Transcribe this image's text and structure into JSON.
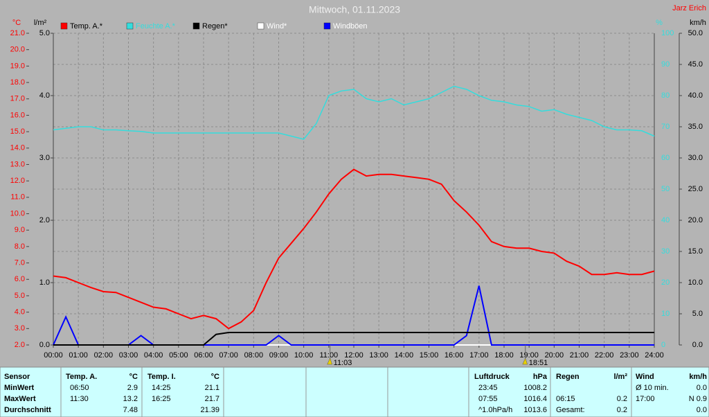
{
  "header": {
    "title": "Mittwoch, 01.11.2023",
    "author": "Jarz Erich"
  },
  "chart_data": {
    "type": "line",
    "x": [
      0,
      0.5,
      1,
      1.5,
      2,
      2.5,
      3,
      3.5,
      4,
      4.5,
      5,
      5.5,
      6,
      6.5,
      7,
      7.5,
      8,
      8.5,
      9,
      9.5,
      10,
      10.5,
      11,
      11.5,
      12,
      12.5,
      13,
      13.5,
      14,
      14.5,
      15,
      15.5,
      16,
      16.5,
      17,
      17.5,
      18,
      18.5,
      19,
      19.5,
      20,
      20.5,
      21,
      21.5,
      22,
      22.5,
      23,
      23.5,
      24
    ],
    "xlim": [
      0,
      24
    ],
    "xticks": [
      {
        "value": 0,
        "label": "00:00"
      },
      {
        "value": 1,
        "label": "01:00"
      },
      {
        "value": 2,
        "label": "02:00"
      },
      {
        "value": 3,
        "label": "03:00"
      },
      {
        "value": 4,
        "label": "04:00"
      },
      {
        "value": 5,
        "label": "05:00"
      },
      {
        "value": 6,
        "label": "06:00"
      },
      {
        "value": 7,
        "label": "07:00"
      },
      {
        "value": 8,
        "label": "08:00"
      },
      {
        "value": 9,
        "label": "09:00"
      },
      {
        "value": 10,
        "label": "10:00"
      },
      {
        "value": 11,
        "label": "11:00"
      },
      {
        "value": 12,
        "label": "12:00"
      },
      {
        "value": 13,
        "label": "13:00"
      },
      {
        "value": 14,
        "label": "14:00"
      },
      {
        "value": 15,
        "label": "15:00"
      },
      {
        "value": 16,
        "label": "16:00"
      },
      {
        "value": 17,
        "label": "17:00"
      },
      {
        "value": 18,
        "label": "18:00"
      },
      {
        "value": 19,
        "label": "19:00"
      },
      {
        "value": 20,
        "label": "20:00"
      },
      {
        "value": 21,
        "label": "21:00"
      },
      {
        "value": 22,
        "label": "22:00"
      },
      {
        "value": 23,
        "label": "23:00"
      },
      {
        "value": 24,
        "label": "24:00"
      }
    ],
    "ylabel": "°C",
    "ylim": [
      2,
      21
    ],
    "yticks": [
      {
        "value": 2,
        "label": "2.0"
      },
      {
        "value": 3,
        "label": "3.0"
      },
      {
        "value": 4,
        "label": "4.0"
      },
      {
        "value": 5,
        "label": "5.0"
      },
      {
        "value": 6,
        "label": "6.0"
      },
      {
        "value": 7,
        "label": "7.0"
      },
      {
        "value": 8,
        "label": "8.0"
      },
      {
        "value": 9,
        "label": "9.0"
      },
      {
        "value": 10,
        "label": "10.0"
      },
      {
        "value": 11,
        "label": "11.0"
      },
      {
        "value": 12,
        "label": "12.0"
      },
      {
        "value": 13,
        "label": "13.0"
      },
      {
        "value": 14,
        "label": "14.0"
      },
      {
        "value": 15,
        "label": "15.0"
      },
      {
        "value": 16,
        "label": "16.0"
      },
      {
        "value": 17,
        "label": "17.0"
      },
      {
        "value": 18,
        "label": "18.0"
      },
      {
        "value": 19,
        "label": "19.0"
      },
      {
        "value": 20,
        "label": "20.0"
      },
      {
        "value": 21,
        "label": "21.0"
      }
    ],
    "y2label": "l/m²",
    "y2lim": [
      0,
      5
    ],
    "y2ticks": [
      {
        "value": 0,
        "label": "0.0"
      },
      {
        "value": 1,
        "label": "1.0"
      },
      {
        "value": 2,
        "label": "2.0"
      },
      {
        "value": 3,
        "label": "3.0"
      },
      {
        "value": 4,
        "label": "4.0"
      },
      {
        "value": 5,
        "label": "5.0"
      }
    ],
    "y3label": "%",
    "y3lim": [
      0,
      100
    ],
    "y3ticks": [
      0,
      10,
      20,
      30,
      40,
      50,
      60,
      70,
      80,
      90,
      100
    ],
    "y4label": "km/h",
    "y4lim": [
      0,
      50
    ],
    "y4ticks": [
      {
        "value": 0,
        "label": "0.0"
      },
      {
        "value": 5,
        "label": "5.0"
      },
      {
        "value": 10,
        "label": "10.0"
      },
      {
        "value": 15,
        "label": "15.0"
      },
      {
        "value": 20,
        "label": "20.0"
      },
      {
        "value": 25,
        "label": "25.0"
      },
      {
        "value": 30,
        "label": "30.0"
      },
      {
        "value": 35,
        "label": "35.0"
      },
      {
        "value": 40,
        "label": "40.0"
      },
      {
        "value": 45,
        "label": "45.0"
      },
      {
        "value": 50,
        "label": "50.0"
      }
    ],
    "grid": true,
    "series": [
      {
        "name": "Temp. A.*",
        "color": "#ff0000",
        "axis": "y",
        "values": [
          6.2,
          6.1,
          5.8,
          5.5,
          5.25,
          5.2,
          4.9,
          4.6,
          4.3,
          4.2,
          3.9,
          3.6,
          3.8,
          3.6,
          3.0,
          3.4,
          4.1,
          5.8,
          7.3,
          8.2,
          9.1,
          10.1,
          11.2,
          12.1,
          12.7,
          12.3,
          12.4,
          12.4,
          12.3,
          12.2,
          12.1,
          11.8,
          10.8,
          10.1,
          9.3,
          8.3,
          8.0,
          7.9,
          7.9,
          7.7,
          7.6,
          7.1,
          6.8,
          6.3,
          6.3,
          6.4,
          6.3,
          6.3,
          6.5
        ]
      },
      {
        "name": "Feuchte A.*",
        "color": "#33dddd",
        "axis": "y3",
        "values": [
          69,
          69.5,
          70,
          70,
          69,
          69,
          68.7,
          68.5,
          68,
          68,
          68,
          68,
          68,
          68,
          68,
          68,
          68,
          68,
          68,
          67,
          66,
          71,
          80,
          81.5,
          82,
          79,
          78,
          79,
          77,
          78,
          79,
          81,
          83,
          82,
          80,
          78.5,
          78,
          77,
          76.5,
          75,
          75.5,
          74,
          73,
          72,
          70,
          69,
          69,
          68.7,
          67
        ]
      },
      {
        "name": "Regen*",
        "color": "#000000",
        "axis": "y2",
        "values": [
          0,
          0,
          0,
          0,
          0,
          0,
          0,
          0,
          0,
          0,
          0,
          0,
          0,
          0.17,
          0.2,
          0.2,
          0.2,
          0.2,
          0.2,
          0.2,
          0.2,
          0.2,
          0.2,
          0.2,
          0.2,
          0.2,
          0.2,
          0.2,
          0.2,
          0.2,
          0.2,
          0.2,
          0.2,
          0.2,
          0.2,
          0.2,
          0.2,
          0.2,
          0.2,
          0.2,
          0.2,
          0.2,
          0.2,
          0.2,
          0.2,
          0.2,
          0.2,
          0.2,
          0.2
        ]
      },
      {
        "name": "Wind*",
        "color": "#ffffff",
        "axis": "y4",
        "values": [
          0,
          0,
          0,
          0,
          0,
          0,
          0,
          0,
          0,
          0,
          0,
          0,
          0,
          0,
          0,
          0,
          0,
          0,
          0,
          0,
          0,
          0,
          0,
          0,
          0,
          0,
          0,
          0,
          0,
          0,
          0,
          0,
          0,
          0,
          0,
          0,
          0,
          0,
          0,
          0,
          0,
          0,
          0,
          0,
          0,
          0,
          0,
          0,
          0
        ]
      },
      {
        "name": "Windböen",
        "color": "#0000ff",
        "axis": "y4",
        "values": [
          0,
          4.5,
          0,
          0,
          0,
          0,
          0,
          1.5,
          0,
          0,
          0,
          0,
          0,
          0,
          0,
          0,
          0,
          0,
          1.5,
          0,
          0,
          0,
          0,
          0,
          0,
          0,
          0,
          0,
          0,
          0,
          0,
          0,
          0,
          1.5,
          9.5,
          0,
          0,
          0,
          0,
          0,
          0,
          0,
          0,
          0,
          0,
          0,
          0,
          0,
          0
        ]
      }
    ],
    "annotations": [
      {
        "x": 11.05,
        "label": "11:03"
      },
      {
        "x": 18.85,
        "label": "18:51"
      }
    ]
  },
  "table": {
    "header": [
      "Sensor",
      "Temp. A.",
      "°C",
      "Temp. I.",
      "°C",
      "Luftdruck",
      "hPa",
      "Regen",
      "l/m²",
      "Wind",
      "km/h"
    ],
    "rows": [
      [
        "MinWert",
        "06:50",
        "2.9",
        "14:25",
        "21.1",
        "23:45",
        "1008.2",
        null,
        null,
        "Ø 10 min.",
        "0.0"
      ],
      [
        "MaxWert",
        "11:30",
        "13.2",
        "16:25",
        "21.7",
        "07:55",
        "1016.4",
        "06:15",
        "0.2",
        "17:00",
        "N 0.9"
      ],
      [
        "Durchschnitt",
        null,
        "7.48",
        null,
        "21.39",
        "^1.0hPa/h",
        "1013.6",
        "Gesamt:",
        "0.2",
        null,
        "0.0"
      ]
    ]
  }
}
